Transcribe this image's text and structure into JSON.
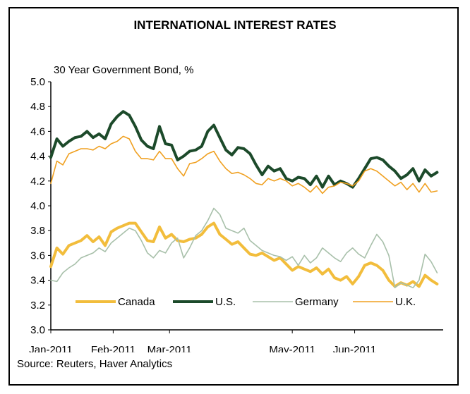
{
  "chart_data": {
    "type": "line",
    "title": "INTERNATIONAL INTEREST RATES",
    "subtitle": "30 Year Government Bond, %",
    "source": "Source: Reuters, Haver Analytics",
    "ylim": [
      3.0,
      5.0
    ],
    "y_ticks": [
      "5.0",
      "4.8",
      "4.6",
      "4.4",
      "4.2",
      "4.0",
      "3.8",
      "3.6",
      "3.4",
      "3.2",
      "3.0"
    ],
    "x_tick_labels": [
      "Jan-2011",
      "Feb-2011",
      "Mar-2011",
      "May-2011",
      "Jun-2011"
    ],
    "x_tick_positions": [
      0,
      31,
      59,
      120,
      151
    ],
    "xlim": [
      0,
      195
    ],
    "legend_position": "bottom-center",
    "series": [
      {
        "name": "Canada",
        "color": "#f2bd3c",
        "x": [
          0,
          3,
          6,
          9,
          12,
          15,
          18,
          21,
          24,
          27,
          30,
          33,
          36,
          39,
          42,
          45,
          48,
          51,
          54,
          57,
          60,
          63,
          66,
          69,
          72,
          75,
          78,
          81,
          84,
          87,
          90,
          93,
          96,
          99,
          102,
          105,
          108,
          111,
          114,
          117,
          120,
          123,
          126,
          129,
          132,
          135,
          138,
          141,
          144,
          147,
          150,
          153,
          156,
          159,
          162,
          165,
          168,
          171,
          174,
          177,
          180,
          183,
          186,
          189,
          192
        ],
        "values": [
          3.51,
          3.66,
          3.61,
          3.68,
          3.7,
          3.72,
          3.76,
          3.71,
          3.75,
          3.68,
          3.79,
          3.82,
          3.84,
          3.86,
          3.86,
          3.79,
          3.72,
          3.71,
          3.83,
          3.74,
          3.77,
          3.72,
          3.71,
          3.73,
          3.74,
          3.77,
          3.83,
          3.86,
          3.77,
          3.73,
          3.69,
          3.71,
          3.66,
          3.61,
          3.6,
          3.62,
          3.59,
          3.56,
          3.58,
          3.53,
          3.48,
          3.51,
          3.49,
          3.47,
          3.5,
          3.45,
          3.49,
          3.42,
          3.4,
          3.43,
          3.37,
          3.43,
          3.52,
          3.54,
          3.52,
          3.48,
          3.4,
          3.35,
          3.38,
          3.36,
          3.39,
          3.35,
          3.44,
          3.4,
          3.37
        ]
      },
      {
        "name": "U.S.",
        "color": "#1c4a2a",
        "x": [
          0,
          3,
          6,
          9,
          12,
          15,
          18,
          21,
          24,
          27,
          30,
          33,
          36,
          39,
          42,
          45,
          48,
          51,
          54,
          57,
          60,
          63,
          66,
          69,
          72,
          75,
          78,
          81,
          84,
          87,
          90,
          93,
          96,
          99,
          102,
          105,
          108,
          111,
          114,
          117,
          120,
          123,
          126,
          129,
          132,
          135,
          138,
          141,
          144,
          147,
          150,
          153,
          156,
          159,
          162,
          165,
          168,
          171,
          174,
          177,
          180,
          183,
          186,
          189,
          192
        ],
        "values": [
          4.39,
          4.54,
          4.48,
          4.52,
          4.55,
          4.56,
          4.6,
          4.55,
          4.58,
          4.54,
          4.66,
          4.72,
          4.76,
          4.73,
          4.64,
          4.53,
          4.48,
          4.46,
          4.64,
          4.5,
          4.49,
          4.37,
          4.4,
          4.44,
          4.45,
          4.48,
          4.6,
          4.65,
          4.55,
          4.45,
          4.41,
          4.47,
          4.46,
          4.42,
          4.33,
          4.25,
          4.32,
          4.28,
          4.3,
          4.22,
          4.2,
          4.23,
          4.22,
          4.17,
          4.24,
          4.15,
          4.24,
          4.17,
          4.2,
          4.18,
          4.15,
          4.22,
          4.3,
          4.38,
          4.39,
          4.37,
          4.32,
          4.28,
          4.22,
          4.25,
          4.3,
          4.2,
          4.29,
          4.24,
          4.27
        ]
      },
      {
        "name": "Germany",
        "color": "#a8c0aa",
        "x": [
          0,
          3,
          6,
          9,
          12,
          15,
          18,
          21,
          24,
          27,
          30,
          33,
          36,
          39,
          42,
          45,
          48,
          51,
          54,
          57,
          60,
          63,
          66,
          69,
          72,
          75,
          78,
          81,
          84,
          87,
          90,
          93,
          96,
          99,
          102,
          105,
          108,
          111,
          114,
          117,
          120,
          123,
          126,
          129,
          132,
          135,
          138,
          141,
          144,
          147,
          150,
          153,
          156,
          159,
          162,
          165,
          168,
          171,
          174,
          177,
          180,
          183,
          186,
          189,
          192
        ],
        "values": [
          3.4,
          3.39,
          3.46,
          3.5,
          3.53,
          3.58,
          3.6,
          3.62,
          3.66,
          3.63,
          3.7,
          3.74,
          3.78,
          3.82,
          3.8,
          3.72,
          3.62,
          3.58,
          3.64,
          3.62,
          3.7,
          3.74,
          3.58,
          3.66,
          3.76,
          3.8,
          3.88,
          3.98,
          3.93,
          3.82,
          3.8,
          3.78,
          3.82,
          3.72,
          3.68,
          3.64,
          3.62,
          3.6,
          3.59,
          3.56,
          3.59,
          3.52,
          3.6,
          3.54,
          3.58,
          3.66,
          3.62,
          3.58,
          3.55,
          3.62,
          3.66,
          3.61,
          3.58,
          3.68,
          3.77,
          3.71,
          3.6,
          3.34,
          3.38,
          3.36,
          3.34,
          3.4,
          3.61,
          3.55,
          3.46
        ]
      },
      {
        "name": "U.K.",
        "color": "#f0a020",
        "x": [
          0,
          3,
          6,
          9,
          12,
          15,
          18,
          21,
          24,
          27,
          30,
          33,
          36,
          39,
          42,
          45,
          48,
          51,
          54,
          57,
          60,
          63,
          66,
          69,
          72,
          75,
          78,
          81,
          84,
          87,
          90,
          93,
          96,
          99,
          102,
          105,
          108,
          111,
          114,
          117,
          120,
          123,
          126,
          129,
          132,
          135,
          138,
          141,
          144,
          147,
          150,
          153,
          156,
          159,
          162,
          165,
          168,
          171,
          174,
          177,
          180,
          183,
          186,
          189,
          192
        ],
        "values": [
          4.18,
          4.36,
          4.33,
          4.42,
          4.44,
          4.46,
          4.46,
          4.45,
          4.48,
          4.46,
          4.5,
          4.52,
          4.56,
          4.54,
          4.44,
          4.38,
          4.38,
          4.37,
          4.44,
          4.38,
          4.38,
          4.3,
          4.24,
          4.34,
          4.35,
          4.38,
          4.42,
          4.44,
          4.36,
          4.3,
          4.26,
          4.27,
          4.25,
          4.22,
          4.18,
          4.17,
          4.22,
          4.2,
          4.22,
          4.2,
          4.16,
          4.18,
          4.15,
          4.11,
          4.16,
          4.1,
          4.15,
          4.16,
          4.19,
          4.18,
          4.16,
          4.2,
          4.28,
          4.3,
          4.28,
          4.24,
          4.2,
          4.16,
          4.19,
          4.13,
          4.18,
          4.11,
          4.18,
          4.11,
          4.12
        ]
      }
    ]
  }
}
